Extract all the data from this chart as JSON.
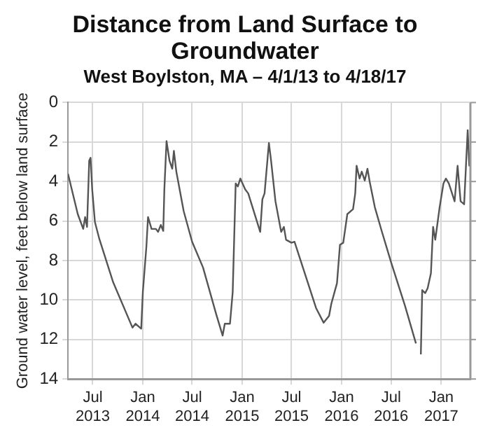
{
  "chart_data": {
    "type": "line",
    "title": "Distance from Land Surface to Groundwater",
    "subtitle": "West Boylston, MA – 4/1/13 to 4/18/17",
    "ylabel": "Ground water level, feet below land surface",
    "x": [
      "2013-04-01",
      "2013-05-07",
      "2013-05-27",
      "2013-06-03",
      "2013-06-10",
      "2013-06-18",
      "2013-06-23",
      "2013-06-29",
      "2013-07-09",
      "2013-07-25",
      "2013-09-14",
      "2013-11-24",
      "2013-12-05",
      "2013-12-26",
      "2014-01-01",
      "2014-01-14",
      "2014-01-20",
      "2014-02-02",
      "2014-02-18",
      "2014-02-26",
      "2014-03-08",
      "2014-03-17",
      "2014-03-21",
      "2014-03-29",
      "2014-04-09",
      "2014-04-19",
      "2014-04-25",
      "2014-05-04",
      "2014-05-31",
      "2014-07-01",
      "2014-08-10",
      "2014-09-27",
      "2014-10-21",
      "2014-10-29",
      "2014-11-17",
      "2014-11-27",
      "2014-12-08",
      "2014-12-16",
      "2014-12-25",
      "2015-01-12",
      "2015-01-23",
      "2015-03-08",
      "2015-03-16",
      "2015-03-24",
      "2015-04-09",
      "2015-04-17",
      "2015-05-03",
      "2015-05-24",
      "2015-06-03",
      "2015-06-11",
      "2015-07-01",
      "2015-07-12",
      "2015-08-13",
      "2015-09-29",
      "2015-10-27",
      "2015-11-16",
      "2015-11-24",
      "2015-12-15",
      "2015-12-26",
      "2016-01-07",
      "2016-01-22",
      "2016-02-12",
      "2016-02-20",
      "2016-02-25",
      "2016-03-07",
      "2016-03-15",
      "2016-03-26",
      "2016-04-05",
      "2016-04-13",
      "2016-05-02",
      "2016-05-26",
      "2016-07-01",
      "2016-08-21",
      "2016-09-30",
      "2016-10-10",
      "2016-10-18",
      "2016-10-23",
      "2016-11-03",
      "2016-11-12",
      "2016-11-24",
      "2016-12-02",
      "2016-12-10",
      "2016-12-26",
      "2017-01-09",
      "2017-01-18",
      "2017-01-29",
      "2017-02-19",
      "2017-03-02",
      "2017-03-13",
      "2017-03-26",
      "2017-04-08",
      "2017-04-14",
      "2017-04-18"
    ],
    "series": [
      {
        "color": "#555555",
        "values": [
          3.6,
          5.65,
          6.4,
          5.8,
          6.3,
          2.95,
          2.8,
          4.4,
          6.05,
          6.9,
          9.1,
          11.4,
          11.2,
          11.45,
          9.6,
          7.3,
          5.8,
          6.4,
          6.4,
          6.55,
          6.2,
          6.5,
          4.4,
          1.95,
          2.95,
          3.35,
          2.45,
          3.5,
          5.5,
          7.05,
          8.35,
          10.7,
          11.8,
          11.2,
          11.2,
          9.6,
          4.1,
          4.25,
          3.85,
          4.4,
          4.6,
          6.55,
          4.9,
          4.6,
          2.05,
          2.95,
          5.0,
          6.55,
          6.3,
          6.95,
          7.1,
          7.05,
          8.4,
          10.4,
          11.15,
          10.8,
          10.2,
          9.15,
          7.2,
          7.1,
          5.65,
          5.4,
          4.6,
          3.2,
          3.85,
          3.5,
          3.95,
          3.35,
          4.0,
          5.3,
          6.45,
          8.1,
          10.3,
          12.2,
          null,
          12.75,
          9.5,
          9.65,
          9.4,
          8.65,
          6.3,
          6.95,
          5.3,
          4.1,
          3.85,
          4.1,
          5.0,
          3.2,
          5.0,
          5.15,
          1.4,
          3.2,
          2.55
        ]
      }
    ],
    "xlim": [
      "2013-04-01",
      "2017-04-18"
    ],
    "xticks": [
      {
        "value": "2013-07-01",
        "label": "Jul 2013"
      },
      {
        "value": "2014-01-01",
        "label": "Jan 2014"
      },
      {
        "value": "2014-07-01",
        "label": "Jul 2014"
      },
      {
        "value": "2015-01-01",
        "label": "Jan 2015"
      },
      {
        "value": "2015-07-01",
        "label": "Jul 2015"
      },
      {
        "value": "2016-01-01",
        "label": "Jan 2016"
      },
      {
        "value": "2016-07-01",
        "label": "Jul 2016"
      },
      {
        "value": "2017-01-01",
        "label": "Jan 2017"
      }
    ],
    "ylim": [
      14,
      0
    ],
    "yticks": [
      0,
      2,
      4,
      6,
      8,
      10,
      12,
      14
    ],
    "grid": true,
    "marker": "none",
    "line_style": "solid"
  }
}
